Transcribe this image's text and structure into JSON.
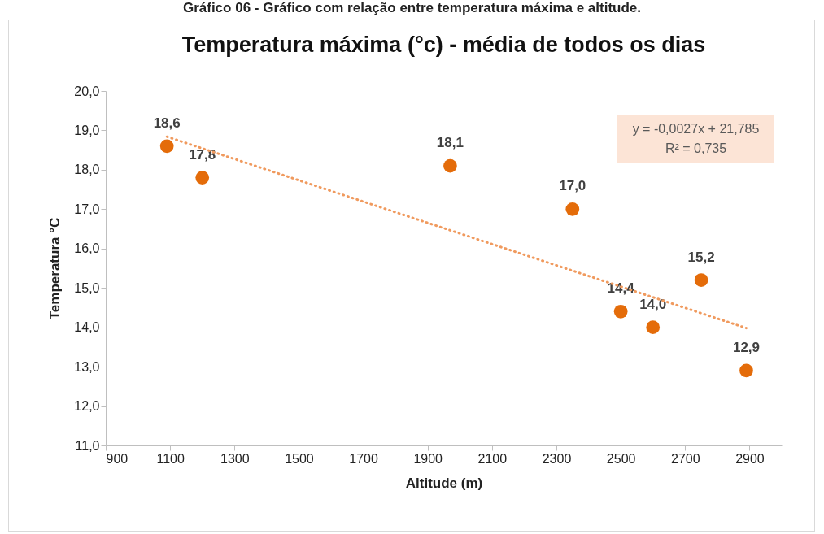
{
  "chart_data": {
    "type": "scatter",
    "title": "Temperatura máxima (°c) - média de todos os dias",
    "xlabel": "Altitude (m)",
    "ylabel": "Temperatura °C",
    "annotations": [
      "Gráfico 06 - Gráfico com relação entre temperatura máxima e altitude.",
      "y = -0,0027x + 21,785",
      "R² = 0,735"
    ],
    "series": [
      {
        "color": "#e46c0a",
        "marker": "circle",
        "x": [
          1090,
          1200,
          1970,
          2350,
          2500,
          2600,
          2750,
          2890
        ],
        "values": [
          18.6,
          17.8,
          18.1,
          17.0,
          14.4,
          14.0,
          15.2,
          12.9
        ],
        "value_labels": [
          "18,6",
          "17,8",
          "18,1",
          "17,0",
          "14,4",
          "14,0",
          "15,2",
          "12,9"
        ]
      },
      {
        "type": "line",
        "color": "#f09a5e",
        "line_style": "dotted",
        "x": [
          1090,
          2890
        ],
        "values": [
          18.84,
          13.98
        ]
      }
    ],
    "xlim": [
      900,
      3000
    ],
    "xticks": [
      900,
      1100,
      1300,
      1500,
      1700,
      1900,
      2100,
      2300,
      2500,
      2700,
      2900
    ],
    "ylim": [
      11,
      20
    ],
    "yticks": [
      {
        "value": 11,
        "label": "11,0"
      },
      {
        "value": 12,
        "label": "12,0"
      },
      {
        "value": 13,
        "label": "13,0"
      },
      {
        "value": 14,
        "label": "14,0"
      },
      {
        "value": 15,
        "label": "15,0"
      },
      {
        "value": 16,
        "label": "16,0"
      },
      {
        "value": 17,
        "label": "17,0"
      },
      {
        "value": 18,
        "label": "18,0"
      },
      {
        "value": 19,
        "label": "19,0"
      },
      {
        "value": 20,
        "label": "20,0"
      }
    ],
    "grid": false
  }
}
